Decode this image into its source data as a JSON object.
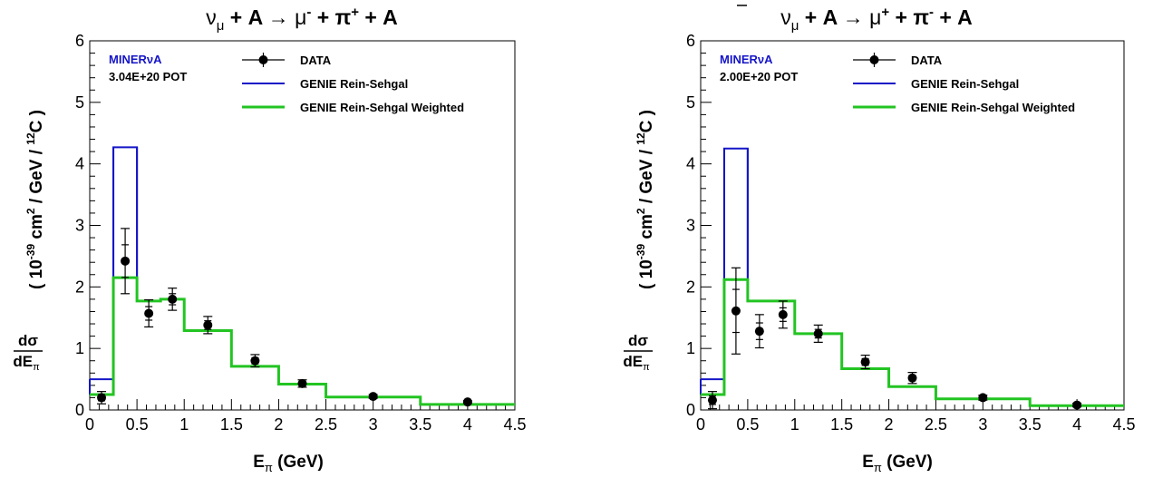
{
  "chart_data": [
    {
      "type": "line",
      "title": "ν_μ + A → μ⁻ + π⁺ + A",
      "title_parts": {
        "nu": "ν",
        "nu_sub": "μ",
        "mid1": " + A ",
        "arrow": "→",
        "mu": " μ",
        "mu_sup": "-",
        "mid2": " + π",
        "pi_sup": "+",
        "end": " + A"
      },
      "experiment": "MINERνA",
      "pot": "3.04E+20 POT",
      "xlabel": "E_π (GeV)",
      "xlabel_main": "E",
      "xlabel_sub": "π",
      "xlabel_unit": " (GeV)",
      "ylabel": "dσ/dE_π ( 10⁻³⁹ cm² / GeV / ¹²C )",
      "ylabel_parts": {
        "frac_num": "dσ",
        "frac_den": "dE",
        "frac_den_sub": "π",
        "open": "( 10",
        "exp": "-39",
        "cm": " cm",
        "cm_exp": "2",
        "gev": " / GeV / ",
        "c_sup": "12",
        "c": "C )"
      },
      "xlim": [
        0,
        4.5
      ],
      "ylim": [
        0,
        6
      ],
      "x_ticks": [
        "0",
        "0.5",
        "1",
        "1.5",
        "2",
        "2.5",
        "3",
        "3.5",
        "4",
        "4.5"
      ],
      "y_ticks": [
        "0",
        "1",
        "2",
        "3",
        "4",
        "5",
        "6"
      ],
      "bin_edges": [
        0,
        0.25,
        0.5,
        0.75,
        1.0,
        1.5,
        2.0,
        2.5,
        3.5,
        4.5
      ],
      "legend": [
        "DATA",
        "GENIE Rein-Sehgal",
        "GENIE Rein-Sehgal Weighted"
      ],
      "series": [
        {
          "name": "GENIE Rein-Sehgal",
          "color": "#1515c8",
          "values": [
            0.5,
            4.27,
            1.77,
            1.8,
            1.29,
            0.71,
            0.42,
            0.21,
            0.09
          ]
        },
        {
          "name": "GENIE Rein-Sehgal Weighted",
          "color": "#22c422",
          "values": [
            0.25,
            2.15,
            1.77,
            1.8,
            1.29,
            0.71,
            0.42,
            0.21,
            0.09
          ]
        },
        {
          "name": "DATA",
          "color": "#000000",
          "points": [
            {
              "x": 0.125,
              "y": 0.2,
              "err": 0.1
            },
            {
              "x": 0.375,
              "y": 2.42,
              "err": 0.53
            },
            {
              "x": 0.625,
              "y": 1.57,
              "err": 0.22
            },
            {
              "x": 0.875,
              "y": 1.8,
              "err": 0.18
            },
            {
              "x": 1.25,
              "y": 1.38,
              "err": 0.14
            },
            {
              "x": 1.75,
              "y": 0.8,
              "err": 0.1
            },
            {
              "x": 2.25,
              "y": 0.43,
              "err": 0.06
            },
            {
              "x": 3.0,
              "y": 0.22,
              "err": 0.03
            },
            {
              "x": 4.0,
              "y": 0.13,
              "err": 0.02
            }
          ]
        }
      ]
    },
    {
      "type": "line",
      "title": "ν̄_μ + A → μ⁺ + π⁻ + A",
      "title_parts": {
        "nu": "ν",
        "nu_sub": "μ",
        "mid1": " + A ",
        "arrow": "→",
        "mu": " μ",
        "mu_sup": "+",
        "mid2": " + π",
        "pi_sup": "-",
        "end": " + A"
      },
      "experiment": "MINERνA",
      "pot": "2.00E+20 POT",
      "xlabel": "E_π (GeV)",
      "xlabel_main": "E",
      "xlabel_sub": "π",
      "xlabel_unit": " (GeV)",
      "ylabel": "dσ/dE_π ( 10⁻³⁹ cm² / GeV / ¹²C )",
      "ylabel_parts": {
        "frac_num": "dσ",
        "frac_den": "dE",
        "frac_den_sub": "π",
        "open": "( 10",
        "exp": "-39",
        "cm": " cm",
        "cm_exp": "2",
        "gev": " / GeV / ",
        "c_sup": "12",
        "c": "C )"
      },
      "xlim": [
        0,
        4.5
      ],
      "ylim": [
        0,
        6
      ],
      "x_ticks": [
        "0",
        "0.5",
        "1",
        "1.5",
        "2",
        "2.5",
        "3",
        "3.5",
        "4",
        "4.5"
      ],
      "y_ticks": [
        "0",
        "1",
        "2",
        "3",
        "4",
        "5",
        "6"
      ],
      "bin_edges": [
        0,
        0.25,
        0.5,
        0.75,
        1.0,
        1.5,
        2.0,
        2.5,
        3.5,
        4.5
      ],
      "legend": [
        "DATA",
        "GENIE Rein-Sehgal",
        "GENIE Rein-Sehgal Weighted"
      ],
      "series": [
        {
          "name": "GENIE Rein-Sehgal",
          "color": "#1515c8",
          "values": [
            0.5,
            4.25,
            1.77,
            1.77,
            1.24,
            0.67,
            0.38,
            0.18,
            0.07
          ]
        },
        {
          "name": "GENIE Rein-Sehgal Weighted",
          "color": "#22c422",
          "values": [
            0.25,
            2.12,
            1.77,
            1.77,
            1.24,
            0.67,
            0.38,
            0.18,
            0.07
          ]
        },
        {
          "name": "DATA",
          "color": "#000000",
          "points": [
            {
              "x": 0.125,
              "y": 0.16,
              "err": 0.14
            },
            {
              "x": 0.375,
              "y": 1.61,
              "err": 0.7
            },
            {
              "x": 0.625,
              "y": 1.28,
              "err": 0.27
            },
            {
              "x": 0.875,
              "y": 1.55,
              "err": 0.22
            },
            {
              "x": 1.25,
              "y": 1.24,
              "err": 0.14
            },
            {
              "x": 1.75,
              "y": 0.78,
              "err": 0.11
            },
            {
              "x": 2.25,
              "y": 0.52,
              "err": 0.09
            },
            {
              "x": 3.0,
              "y": 0.2,
              "err": 0.04
            },
            {
              "x": 4.0,
              "y": 0.08,
              "err": 0.03
            }
          ]
        }
      ]
    }
  ]
}
